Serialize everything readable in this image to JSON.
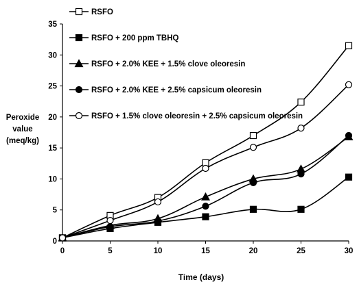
{
  "chart_data": {
    "type": "line",
    "title": "",
    "xlabel": "Time (days)",
    "ylabel": [
      "Peroxide",
      "value",
      "(meq/kg)"
    ],
    "x": [
      0,
      5,
      10,
      15,
      20,
      25,
      30
    ],
    "xticks": [
      "0",
      "5",
      "10",
      "15",
      "20",
      "25",
      "30"
    ],
    "yticks": [
      "0",
      "5",
      "10",
      "15",
      "20",
      "25",
      "30",
      "35"
    ],
    "xlim": [
      0,
      30
    ],
    "ylim": [
      0,
      35
    ],
    "grid": false,
    "legend_position": "top-left",
    "series": [
      {
        "name": "RSFO",
        "marker": "square-open",
        "values": [
          0.5,
          4.1,
          7.0,
          12.6,
          17.0,
          22.4,
          31.5
        ]
      },
      {
        "name": "RSFO + 200 ppm TBHQ",
        "marker": "square-filled",
        "values": [
          0.5,
          2.0,
          3.0,
          3.9,
          5.1,
          5.1,
          10.3
        ]
      },
      {
        "name": "RSFO + 2.0% KEE + 1.5% clove oleoresin",
        "marker": "triangle-filled",
        "values": [
          0.5,
          2.5,
          3.6,
          7.1,
          10.0,
          11.6,
          16.8
        ]
      },
      {
        "name": "RSFO + 2.0% KEE + 2.5% capsicum oleoresin",
        "marker": "circle-filled",
        "values": [
          0.5,
          2.3,
          3.2,
          5.6,
          9.4,
          10.8,
          17.0
        ]
      },
      {
        "name": "RSFO + 1.5% clove oleoresin + 2.5% capsicum oleoresin",
        "marker": "circle-open",
        "values": [
          0.5,
          3.3,
          6.3,
          11.7,
          15.1,
          18.2,
          25.2
        ]
      }
    ],
    "line_color": "#000000",
    "background_color": "#ffffff"
  }
}
